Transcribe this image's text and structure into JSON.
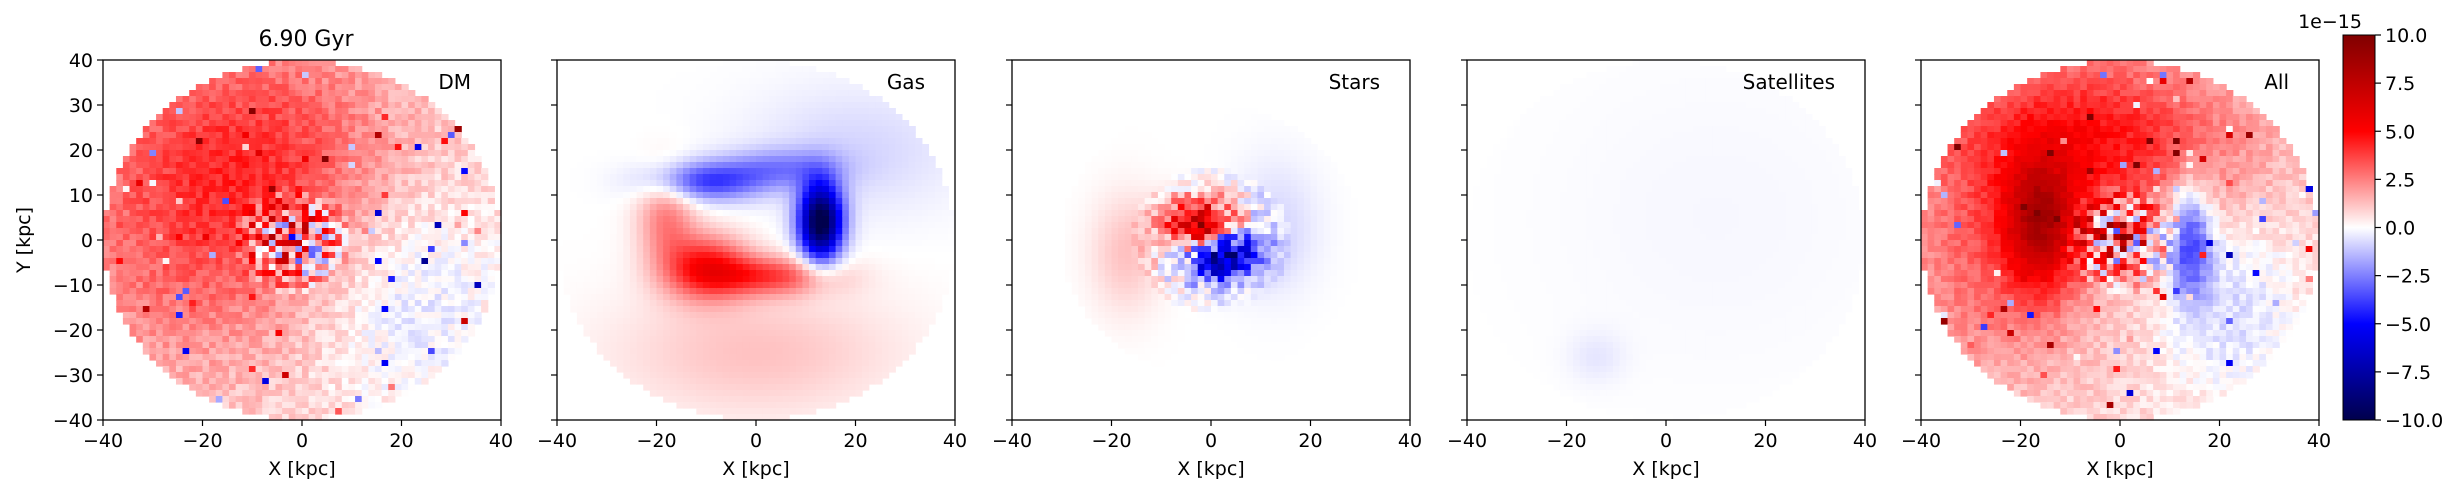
{
  "figure": {
    "time_label": "6.90 Gyr",
    "xlabel": "X [kpc]",
    "ylabel": "Y [kpc]"
  },
  "colorbar": {
    "cmap": "seismic",
    "range": [
      -1e-14,
      1e-14
    ],
    "offset_text": "1e−15",
    "ticks": [
      10.0,
      7.5,
      5.0,
      2.5,
      0.0,
      -2.5,
      -5.0,
      -7.5,
      -10.0
    ],
    "tick_labels": [
      "10.0",
      "7.5",
      "5.0",
      "2.5",
      "0.0",
      "−2.5",
      "−5.0",
      "−7.5",
      "−10.0"
    ]
  },
  "chart_data": [
    {
      "type": "heatmap",
      "panel": "DM",
      "label": "DM",
      "xlim": [
        -40,
        40
      ],
      "ylim": [
        -40,
        40
      ],
      "x_ticks": [
        "−40",
        "−20",
        "0",
        "20",
        "40"
      ],
      "y_ticks": [
        "40",
        "30",
        "20",
        "10",
        "0",
        "−10",
        "−20",
        "−30",
        "−40"
      ],
      "xlabel": "X [kpc]",
      "ylabel": "Y [kpc]",
      "support_radius_kpc": 40,
      "features": [
        {
          "kind": "red lobe",
          "center_kpc": [
            -10,
            20
          ],
          "amplitude_e15": 3.5
        },
        {
          "kind": "blue lobe",
          "center_kpc": [
            20,
            -15
          ],
          "amplitude_e15": -1.5
        },
        {
          "kind": "noisy core",
          "center_kpc": [
            -2,
            0
          ],
          "amplitude_e15": 10
        }
      ]
    },
    {
      "type": "heatmap",
      "panel": "Gas",
      "label": "Gas",
      "xlim": [
        -40,
        40
      ],
      "ylim": [
        -40,
        40
      ],
      "x_ticks": [
        "−40",
        "−20",
        "0",
        "20",
        "40"
      ],
      "xlabel": "X [kpc]",
      "support_radius_kpc": 40,
      "features": [
        {
          "kind": "red spiral arm",
          "from_kpc": [
            -18,
            10
          ],
          "to_kpc": [
            12,
            -7
          ],
          "amplitude_e15": 4.5
        },
        {
          "kind": "blue spiral arm",
          "from_kpc": [
            -20,
            10
          ],
          "to_kpc": [
            15,
            5
          ],
          "amplitude_e15": -4
        }
      ]
    },
    {
      "type": "heatmap",
      "panel": "Stars",
      "label": "Stars",
      "xlim": [
        -40,
        40
      ],
      "ylim": [
        -40,
        40
      ],
      "x_ticks": [
        "−40",
        "−20",
        "0",
        "20",
        "40"
      ],
      "xlabel": "X [kpc]",
      "support_radius_kpc": 30,
      "features": [
        {
          "kind": "red core",
          "center_kpc": [
            -2,
            3
          ],
          "amplitude_e15": 10
        },
        {
          "kind": "blue core",
          "center_kpc": [
            2,
            -3
          ],
          "amplitude_e15": -10
        }
      ]
    },
    {
      "type": "heatmap",
      "panel": "Satellites",
      "label": "Satellites",
      "xlim": [
        -40,
        40
      ],
      "ylim": [
        -40,
        40
      ],
      "x_ticks": [
        "−40",
        "−20",
        "0",
        "20",
        "40"
      ],
      "xlabel": "X [kpc]",
      "support_radius_kpc": 40,
      "features": [
        {
          "kind": "faint blue blob",
          "center_kpc": [
            -14,
            -26
          ],
          "amplitude_e15": -0.4
        }
      ]
    },
    {
      "type": "heatmap",
      "panel": "All",
      "label": "All",
      "xlim": [
        -40,
        40
      ],
      "ylim": [
        -40,
        40
      ],
      "x_ticks": [
        "−40",
        "−20",
        "0",
        "20",
        "40"
      ],
      "xlabel": "X [kpc]",
      "support_radius_kpc": 40,
      "features": [
        {
          "kind": "red lobe",
          "center_kpc": [
            -10,
            22
          ],
          "amplitude_e15": 5
        },
        {
          "kind": "red ring",
          "center_kpc": [
            -15,
            2
          ],
          "amplitude_e15": 6
        },
        {
          "kind": "blue arm",
          "center_kpc": [
            14,
            0
          ],
          "amplitude_e15": -5
        },
        {
          "kind": "noisy core",
          "center_kpc": [
            0,
            0
          ],
          "amplitude_e15": 10
        }
      ]
    }
  ]
}
